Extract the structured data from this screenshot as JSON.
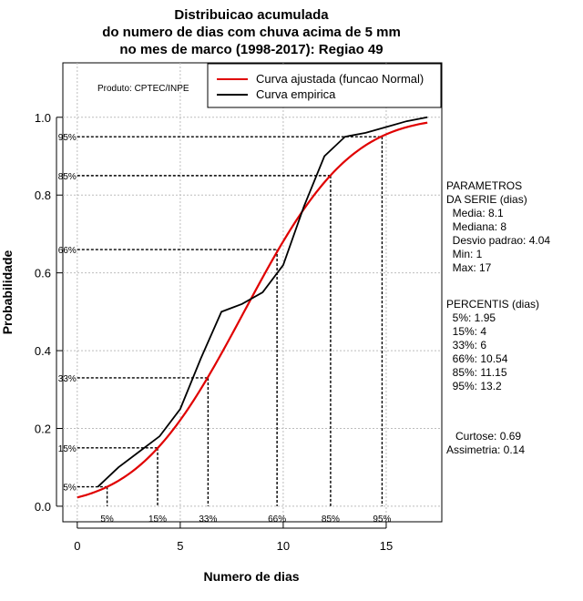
{
  "chart_data": {
    "type": "line",
    "title_lines": [
      "Distribuicao acumulada",
      "do numero de dias com chuva acima de 5 mm",
      "no mes de marco (1998-2017): Regiao 49"
    ],
    "xlabel": "Numero de dias",
    "ylabel": "Probabilidade",
    "xlim": [
      -0.7,
      17.7
    ],
    "ylim": [
      -0.04,
      1.14
    ],
    "x_ticks": [
      0,
      5,
      10,
      15
    ],
    "y_ticks": [
      "0.0",
      "0.2",
      "0.4",
      "0.6",
      "0.8",
      "1.0"
    ],
    "grid": true,
    "producer": "Produto: CPTEC/INPE",
    "legend": {
      "position": "top-right",
      "entries": [
        {
          "label": "Curva ajustada (funcao Normal)",
          "color": "#e00000"
        },
        {
          "label": "Curva empirica",
          "color": "#000000"
        }
      ]
    },
    "series": [
      {
        "name": "Curva ajustada (funcao Normal)",
        "color": "#e00000",
        "type": "normal_cdf",
        "mean": 8.1,
        "sd": 4.04,
        "x_range": [
          0,
          17
        ]
      },
      {
        "name": "Curva empirica",
        "color": "#000000",
        "x": [
          1,
          2,
          3,
          4,
          5,
          6,
          7,
          8,
          9,
          10,
          11,
          12,
          13,
          14,
          15,
          16,
          17
        ],
        "y": [
          0.05,
          0.1,
          0.14,
          0.18,
          0.25,
          0.38,
          0.5,
          0.52,
          0.55,
          0.62,
          0.77,
          0.9,
          0.95,
          0.96,
          0.975,
          0.99,
          1.0
        ]
      }
    ],
    "percentile_lines": [
      {
        "label": "5%",
        "prob": 0.05,
        "value": 1.45
      },
      {
        "label": "15%",
        "prob": 0.15,
        "value": 3.9
      },
      {
        "label": "33%",
        "prob": 0.33,
        "value": 6.35
      },
      {
        "label": "66%",
        "prob": 0.66,
        "value": 9.7
      },
      {
        "label": "85%",
        "prob": 0.85,
        "value": 12.3
      },
      {
        "label": "95%",
        "prob": 0.95,
        "value": 14.8
      }
    ]
  },
  "stats_panel": {
    "parametros_lines": [
      "PARAMETROS",
      "DA SERIE (dias)",
      "  Media: 8.1",
      "  Mediana: 8",
      "  Desvio padrao: 4.04",
      "  Min: 1",
      "  Max: 17"
    ],
    "percentis_lines": [
      "PERCENTIS (dias)",
      "  5%: 1.95",
      "  15%: 4",
      "  33%: 6",
      "  66%: 10.54",
      "  85%: 11.15",
      "  95%: 13.2"
    ],
    "shape_lines": [
      "   Curtose: 0.69",
      "Assimetria: 0.14"
    ]
  }
}
